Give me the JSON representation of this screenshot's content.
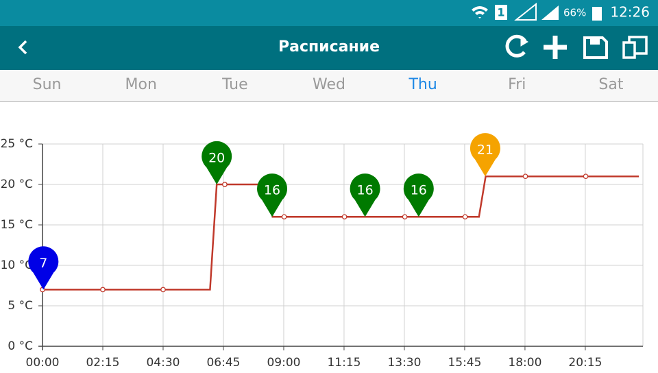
{
  "status_bar": {
    "sim": "1",
    "battery": "66%",
    "time": "12:26"
  },
  "app_bar": {
    "title": "Расписание"
  },
  "tabs": {
    "items": [
      "Sun",
      "Mon",
      "Tue",
      "Wed",
      "Thu",
      "Fri",
      "Sat"
    ],
    "selected": 4
  },
  "chart_data": {
    "type": "line",
    "color": "#c0392b",
    "grid": true,
    "xlim": [
      0,
      1344
    ],
    "ylim": [
      0,
      25
    ],
    "xticks": [
      {
        "value": 0,
        "label": "00:00"
      },
      {
        "value": 135,
        "label": "02:15"
      },
      {
        "value": 270,
        "label": "04:30"
      },
      {
        "value": 405,
        "label": "06:45"
      },
      {
        "value": 540,
        "label": "09:00"
      },
      {
        "value": 675,
        "label": "11:15"
      },
      {
        "value": 810,
        "label": "13:30"
      },
      {
        "value": 945,
        "label": "15:45"
      },
      {
        "value": 1080,
        "label": "18:00"
      },
      {
        "value": 1215,
        "label": "20:15"
      }
    ],
    "yticks": [
      {
        "value": 0,
        "label": "0 °C"
      },
      {
        "value": 5,
        "label": "5 °C"
      },
      {
        "value": 10,
        "label": "10 °C"
      },
      {
        "value": 15,
        "label": "15 °C"
      },
      {
        "value": 20,
        "label": "20 °C"
      },
      {
        "value": 25,
        "label": "25 °C"
      }
    ],
    "series": [
      {
        "x": [
          0,
          135,
          270,
          375,
          390,
          408,
          505,
          515,
          541,
          676,
          811,
          946,
          977,
          992,
          1081,
          1216,
          1335
        ],
        "values": [
          7,
          7,
          7,
          7,
          20,
          20,
          20,
          16,
          16,
          16,
          16,
          16,
          16,
          21,
          21,
          21,
          21
        ]
      },
      {
        "x": [
          0,
          135,
          270,
          408,
          541,
          676,
          811,
          946,
          1081,
          1216
        ],
        "values": [
          7,
          7,
          7,
          20,
          16,
          16,
          16,
          16,
          21,
          21
        ]
      }
    ],
    "annotations": [
      {
        "x": 2,
        "value": 7,
        "color": "#0000e6"
      },
      {
        "x": 390,
        "value": 20,
        "color": "#007a00"
      },
      {
        "x": 514,
        "value": 16,
        "color": "#007a00"
      },
      {
        "x": 722,
        "value": 16,
        "color": "#007a00"
      },
      {
        "x": 842,
        "value": 16,
        "color": "#007a00"
      },
      {
        "x": 991,
        "value": 21,
        "color": "#f5a300"
      }
    ]
  }
}
